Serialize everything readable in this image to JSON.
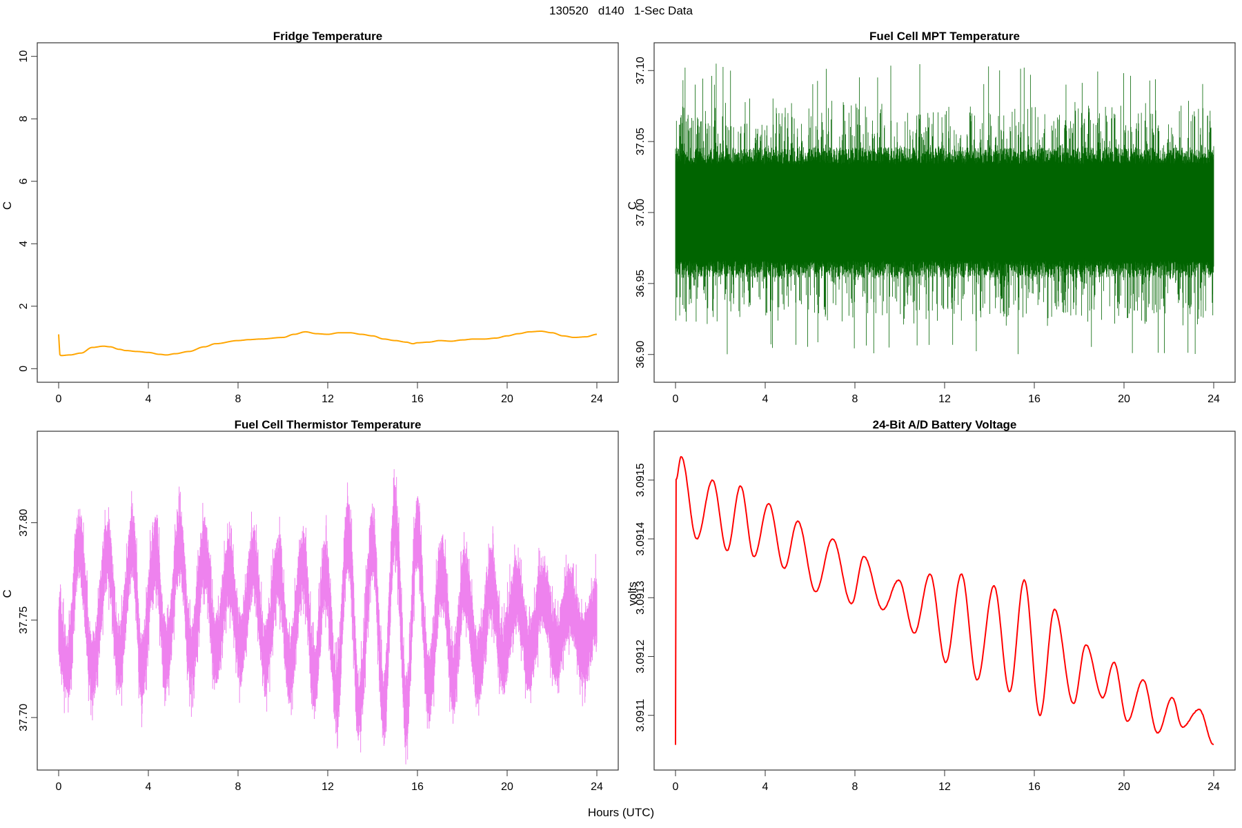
{
  "figure": {
    "title": "130520   d140   1-Sec Data",
    "xlabel": "Hours (UTC)"
  },
  "chart_data": [
    {
      "type": "line",
      "title": "Fridge Temperature",
      "ylabel": "C",
      "xlim": [
        0,
        24
      ],
      "ylim": [
        0,
        10
      ],
      "xticks": [
        0,
        4,
        8,
        12,
        16,
        20,
        24
      ],
      "yticks": [
        0,
        2,
        4,
        6,
        8,
        10
      ],
      "ytick_labels": [
        "0",
        "2",
        "4",
        "6",
        "8",
        "10"
      ],
      "color": "#ffa500",
      "series": [
        {
          "x": [
            0,
            0.05,
            0.1,
            0.5,
            1,
            1.5,
            2,
            2.3,
            2.7,
            3,
            3.5,
            4,
            4.5,
            4.8,
            5.2,
            5.8,
            6.5,
            7,
            8,
            8.5,
            9,
            10,
            10.5,
            11,
            11.5,
            12,
            12.5,
            13,
            13.5,
            14,
            14.5,
            15,
            15.5,
            15.8,
            16,
            16.5,
            17,
            17.5,
            18,
            18.5,
            19,
            19.5,
            20,
            20.5,
            21,
            21.5,
            22,
            22.5,
            23,
            23.5,
            24
          ],
          "values": [
            1.1,
            0.45,
            0.42,
            0.44,
            0.5,
            0.68,
            0.72,
            0.7,
            0.62,
            0.58,
            0.55,
            0.52,
            0.46,
            0.44,
            0.48,
            0.55,
            0.7,
            0.8,
            0.9,
            0.93,
            0.95,
            1.0,
            1.1,
            1.18,
            1.12,
            1.1,
            1.15,
            1.15,
            1.1,
            1.05,
            0.95,
            0.9,
            0.85,
            0.8,
            0.83,
            0.85,
            0.9,
            0.88,
            0.92,
            0.95,
            0.95,
            0.98,
            1.05,
            1.12,
            1.18,
            1.2,
            1.15,
            1.05,
            1.0,
            1.02,
            1.1
          ]
        }
      ]
    },
    {
      "type": "line",
      "title": "Fuel Cell MPT Temperature",
      "ylabel": "C",
      "xlim": [
        0,
        24
      ],
      "ylim": [
        36.89,
        37.11
      ],
      "xticks": [
        0,
        4,
        8,
        12,
        16,
        20,
        24
      ],
      "yticks": [
        36.9,
        36.95,
        37.0,
        37.05,
        37.1
      ],
      "ytick_labels": [
        "36.90",
        "36.95",
        "37.00",
        "37.05",
        "37.10"
      ],
      "color": "#006400",
      "series": [
        {
          "x": [
            0,
            24
          ],
          "values": [
            36.995,
            36.995
          ],
          "band_core": [
            36.96,
            37.04
          ],
          "band_extreme": [
            36.9,
            37.105
          ]
        }
      ]
    },
    {
      "type": "line",
      "title": "Fuel Cell Thermistor Temperature",
      "ylabel": "C",
      "xlim": [
        0,
        24
      ],
      "ylim": [
        37.68,
        37.84
      ],
      "xticks": [
        0,
        4,
        8,
        12,
        16,
        20,
        24
      ],
      "yticks": [
        37.7,
        37.75,
        37.8
      ],
      "ytick_labels": [
        "37.70",
        "37.75",
        "37.80"
      ],
      "color": "#ee82ee",
      "series": [
        {
          "x": [
            0,
            0.4,
            0.9,
            1.5,
            2.2,
            2.7,
            3.3,
            3.7,
            4.3,
            4.8,
            5.4,
            5.9,
            6.5,
            7.0,
            7.6,
            8.1,
            8.7,
            9.2,
            9.8,
            10.3,
            10.9,
            11.4,
            11.9,
            12.4,
            12.9,
            13.4,
            14.0,
            14.5,
            15.0,
            15.5,
            16.0,
            16.5,
            17.1,
            17.6,
            18.1,
            18.7,
            19.3,
            19.8,
            20.4,
            21.0,
            21.6,
            22.2,
            22.8,
            23.4,
            24
          ],
          "values": [
            37.745,
            37.725,
            37.79,
            37.725,
            37.785,
            37.73,
            37.79,
            37.725,
            37.785,
            37.73,
            37.79,
            37.73,
            37.785,
            37.735,
            37.775,
            37.735,
            37.78,
            37.73,
            37.775,
            37.725,
            37.78,
            37.72,
            37.775,
            37.71,
            37.795,
            37.705,
            37.79,
            37.705,
            37.8,
            37.705,
            37.795,
            37.715,
            37.775,
            37.72,
            37.77,
            37.725,
            37.77,
            37.73,
            37.765,
            37.73,
            37.765,
            37.735,
            37.76,
            37.735,
            37.755
          ],
          "band_core_halfwidth": 0.014,
          "band_extreme_halfwidth": 0.03
        }
      ]
    },
    {
      "type": "line",
      "title": "24-Bit A/D Battery Voltage",
      "ylabel": "volts",
      "xlim": [
        0,
        24
      ],
      "ylim": [
        3.09103,
        3.09156
      ],
      "xticks": [
        0,
        4,
        8,
        12,
        16,
        20,
        24
      ],
      "yticks": [
        3.0911,
        3.0912,
        3.0913,
        3.0914,
        3.0915
      ],
      "ytick_labels": [
        "3.0911",
        "3.0912",
        "3.0913",
        "3.0914",
        "3.0915"
      ],
      "color": "#ff0000",
      "series": [
        {
          "x": [
            0,
            0.02,
            0.25,
            0.95,
            1.65,
            2.3,
            2.9,
            3.5,
            4.15,
            4.85,
            5.45,
            6.25,
            7.0,
            7.85,
            8.4,
            9.25,
            9.95,
            10.65,
            11.35,
            12.05,
            12.75,
            13.45,
            14.2,
            14.9,
            15.55,
            16.25,
            16.9,
            17.75,
            18.3,
            19.05,
            19.55,
            20.15,
            20.85,
            21.5,
            22.15,
            22.6,
            23.35,
            24
          ],
          "values": [
            3.09105,
            3.0915,
            3.09154,
            3.0914,
            3.0915,
            3.09138,
            3.09149,
            3.09137,
            3.09146,
            3.09135,
            3.09143,
            3.09131,
            3.0914,
            3.09129,
            3.09137,
            3.09128,
            3.09133,
            3.09124,
            3.09134,
            3.09119,
            3.09134,
            3.09116,
            3.09132,
            3.09114,
            3.09133,
            3.0911,
            3.09128,
            3.09112,
            3.09122,
            3.09113,
            3.09119,
            3.09109,
            3.09116,
            3.09107,
            3.09113,
            3.09108,
            3.09111,
            3.09105
          ]
        }
      ]
    }
  ]
}
